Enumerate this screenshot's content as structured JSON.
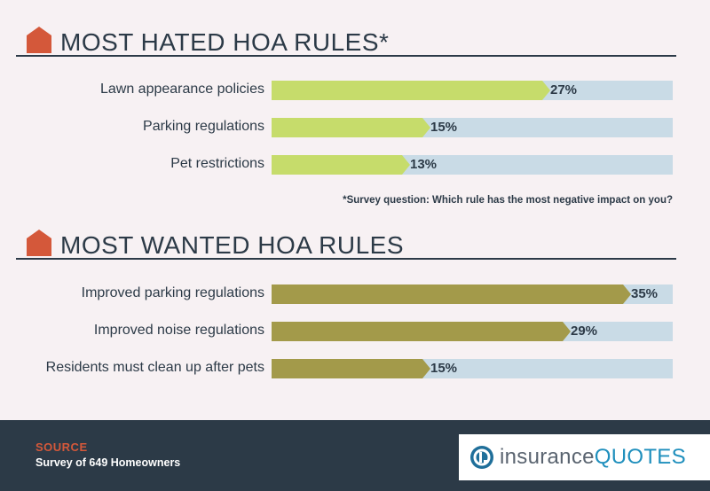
{
  "colors": {
    "hated_bar": "#c6dc6b",
    "wanted_bar": "#a39a4a",
    "track": "#c9dbe6",
    "house_icon": "#d4583a",
    "text": "#2c3a47"
  },
  "chart_data": [
    {
      "type": "bar",
      "orientation": "horizontal",
      "title": "MOST HATED HOA RULES*",
      "categories": [
        "Lawn appearance policies",
        "Parking regulations",
        "Pet restrictions"
      ],
      "values": [
        27,
        15,
        13
      ],
      "value_labels": [
        "27%",
        "15%",
        "13%"
      ],
      "unit": "%",
      "xlim": [
        0,
        40
      ],
      "footnote": "*Survey question: Which rule has the most negative impact on you?"
    },
    {
      "type": "bar",
      "orientation": "horizontal",
      "title": "MOST WANTED HOA RULES",
      "categories": [
        "Improved parking regulations",
        "Improved noise regulations",
        "Residents must clean up after pets"
      ],
      "values": [
        35,
        29,
        15
      ],
      "value_labels": [
        "35%",
        "29%",
        "15%"
      ],
      "unit": "%",
      "xlim": [
        0,
        40
      ]
    }
  ],
  "footer": {
    "source_label": "SOURCE",
    "source_text": "Survey of 649 Homeowners",
    "logo_icon": "insurancequotes-logo-icon",
    "logo_part1": "insurance",
    "logo_part2": "QUOTES"
  }
}
